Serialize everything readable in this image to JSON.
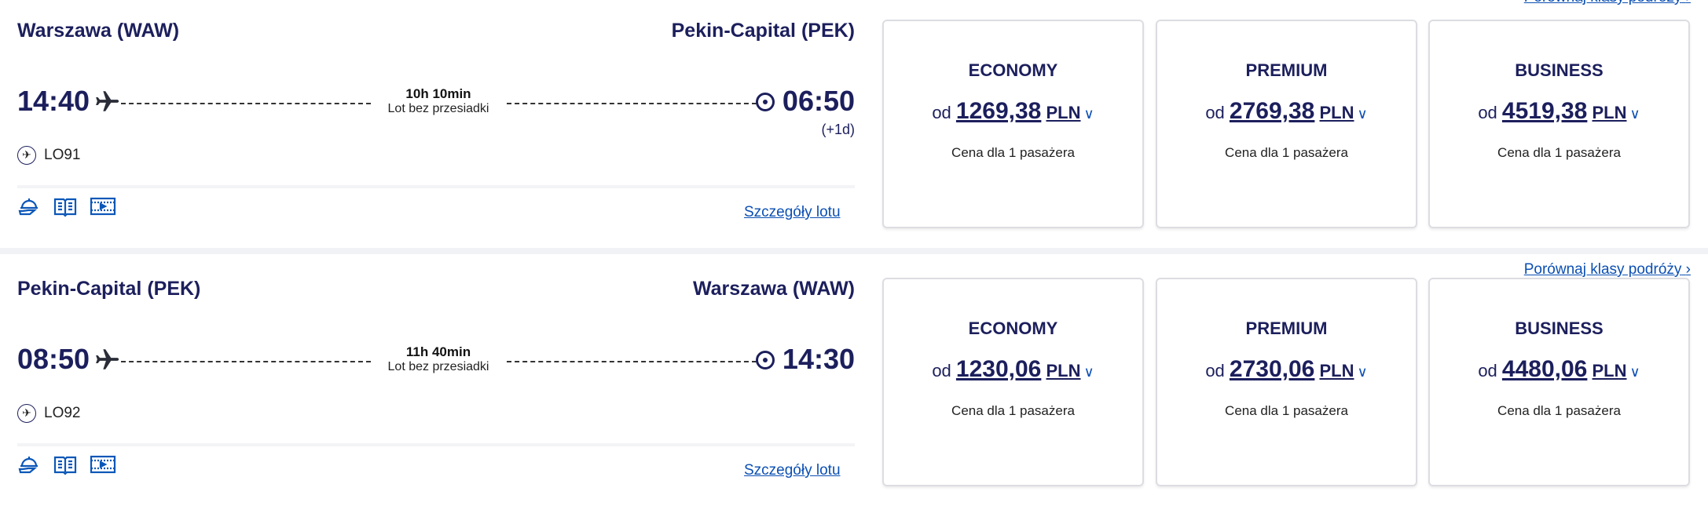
{
  "compare_label": "Porównaj klasy podróży",
  "details_label": "Szczegóły lotu",
  "price_prefix": "od",
  "price_note": "Cena dla 1 pasażera",
  "colors": {
    "navy": "#1c1f5c",
    "link": "#0b4fb3"
  },
  "amenities": [
    "meal-icon",
    "menu-icon",
    "entertainment-icon"
  ],
  "flights": [
    {
      "origin": "Warszawa (WAW)",
      "destination": "Pekin-Capital (PEK)",
      "departure": "14:40",
      "arrival": "06:50",
      "day_offset": "(+1d)",
      "duration": "10h 10min",
      "stops": "Lot bez przesiadki",
      "flight_number": "LO91",
      "fares": [
        {
          "cls": "ECONOMY",
          "price": "1269,38",
          "cur": "PLN"
        },
        {
          "cls": "PREMIUM",
          "price": "2769,38",
          "cur": "PLN"
        },
        {
          "cls": "BUSINESS",
          "price": "4519,38",
          "cur": "PLN"
        }
      ]
    },
    {
      "origin": "Pekin-Capital (PEK)",
      "destination": "Warszawa (WAW)",
      "departure": "08:50",
      "arrival": "14:30",
      "day_offset": "",
      "duration": "11h 40min",
      "stops": "Lot bez przesiadki",
      "flight_number": "LO92",
      "fares": [
        {
          "cls": "ECONOMY",
          "price": "1230,06",
          "cur": "PLN"
        },
        {
          "cls": "PREMIUM",
          "price": "2730,06",
          "cur": "PLN"
        },
        {
          "cls": "BUSINESS",
          "price": "4480,06",
          "cur": "PLN"
        }
      ]
    }
  ]
}
